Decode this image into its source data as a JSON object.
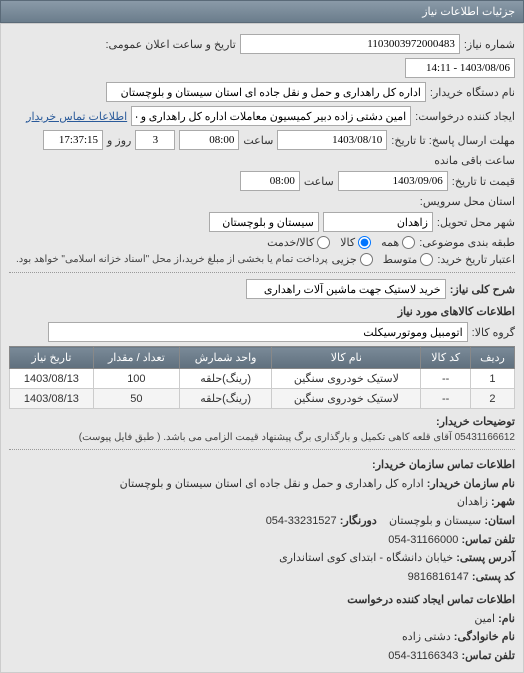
{
  "header": {
    "title": "جزئیات اطلاعات نیاز"
  },
  "info": {
    "need_no_label": "شماره نیاز:",
    "need_no": "1103003972000483",
    "announce_label": "تاریخ و ساعت اعلان عمومی:",
    "announce_val": "1403/08/06 - 14:11",
    "buyer_org_label": "نام دستگاه خریدار:",
    "buyer_org": "اداره کل راهداری و حمل و نقل جاده ای استان سیستان و بلوچستان",
    "requester_label": "ایجاد کننده درخواست:",
    "requester": "امین دشتی زاده دبیر کمیسیون معاملات اداره کل راهداری و حمل و نقل جاده ای",
    "buyer_contact_link": "اطلاعات تماس خریدار",
    "deadline_from_label": "مهلت ارسال پاسخ: تا تاریخ:",
    "deadline_from": "1403/08/10",
    "time_label": "ساعت",
    "deadline_time": "08:00",
    "days_remain": "3",
    "days_remain_label": "روز و",
    "countdown": "17:37:15",
    "countdown_label": "ساعت باقی مانده",
    "price_to_label": "قیمت تا تاریخ:",
    "price_to": "1403/09/06",
    "price_time": "08:00",
    "service_province_label": "استان محل سرویس:",
    "delivery_city_label": "شهر محل تحویل:",
    "delivery_province_label": "سیستان و بلوچستان",
    "delivery_city": "زاهدان",
    "category_label": "طبقه بندی موضوعی:",
    "radio_all": "همه",
    "radio_goods": "کالا",
    "radio_service": "کالا/خدمت",
    "credit_label": "اعتبار تاریخ خرید:",
    "radio_avg": "متوسط",
    "radio_partial": "جزیی",
    "credit_note": "پرداخت تمام یا بخشی از مبلغ خرید،از محل \"اسناد خزانه اسلامی\" خواهد بود."
  },
  "need": {
    "title_label": "شرح کلی نیاز:",
    "title": "خرید لاستیک جهت ماشین آلات راهداری"
  },
  "goods": {
    "section": "اطلاعات کالاهای مورد نیاز",
    "group_label": "گروه کالا:",
    "group": "اتومبیل وموتورسیکلت",
    "cols": {
      "row": "ردیف",
      "code": "کد کالا",
      "name": "نام کالا",
      "unit": "واحد شمارش",
      "qty": "تعداد / مقدار",
      "date": "تاریخ نیاز"
    },
    "rows": [
      {
        "idx": "1",
        "code": "--",
        "name": "لاستیک خودروی سنگین",
        "unit": "(رینگ)حلقه",
        "qty": "100",
        "date": "1403/08/13"
      },
      {
        "idx": "2",
        "code": "--",
        "name": "لاستیک خودروی سنگین",
        "unit": "(رینگ)حلقه",
        "qty": "50",
        "date": "1403/08/13"
      }
    ]
  },
  "buyer_note": {
    "label": "توضیحات خریدار:",
    "text": "05431166612 آقای قلعه کاهی تکمیل و بارگذاری برگ پیشنهاد قیمت الزامی می باشد. ( طبق فایل پیوست)"
  },
  "contacts": {
    "header": "اطلاعات تماس سازمان خریدار:",
    "org_label": "نام سازمان خریدار:",
    "org": "اداره کل راهداری و حمل و نقل جاده ای استان سیستان و بلوچستان",
    "city_label": "شهر:",
    "city": "زاهدان",
    "province_label": "استان:",
    "province": "سیستان و بلوچستان",
    "fax_label": "دورنگار:",
    "fax": "33231527-054",
    "tel_label": "تلفن تماس:",
    "tel": "31166000-054",
    "postaddr_label": "آدرس پستی:",
    "postaddr": "خیابان دانشگاه - ابتدای کوی استانداری",
    "postcode_label": "کد پستی:",
    "postcode": "9816816147",
    "req_header": "اطلاعات تماس ایجاد کننده درخواست",
    "fname_label": "نام:",
    "fname": "امین",
    "lname_label": "نام خانوادگی:",
    "lname": "دشتی زاده",
    "req_tel_label": "تلفن تماس:",
    "req_tel": "31166343-054"
  },
  "colors": {
    "header_grad_top": "#8a9aa8",
    "header_grad_bot": "#6b7d8c"
  }
}
